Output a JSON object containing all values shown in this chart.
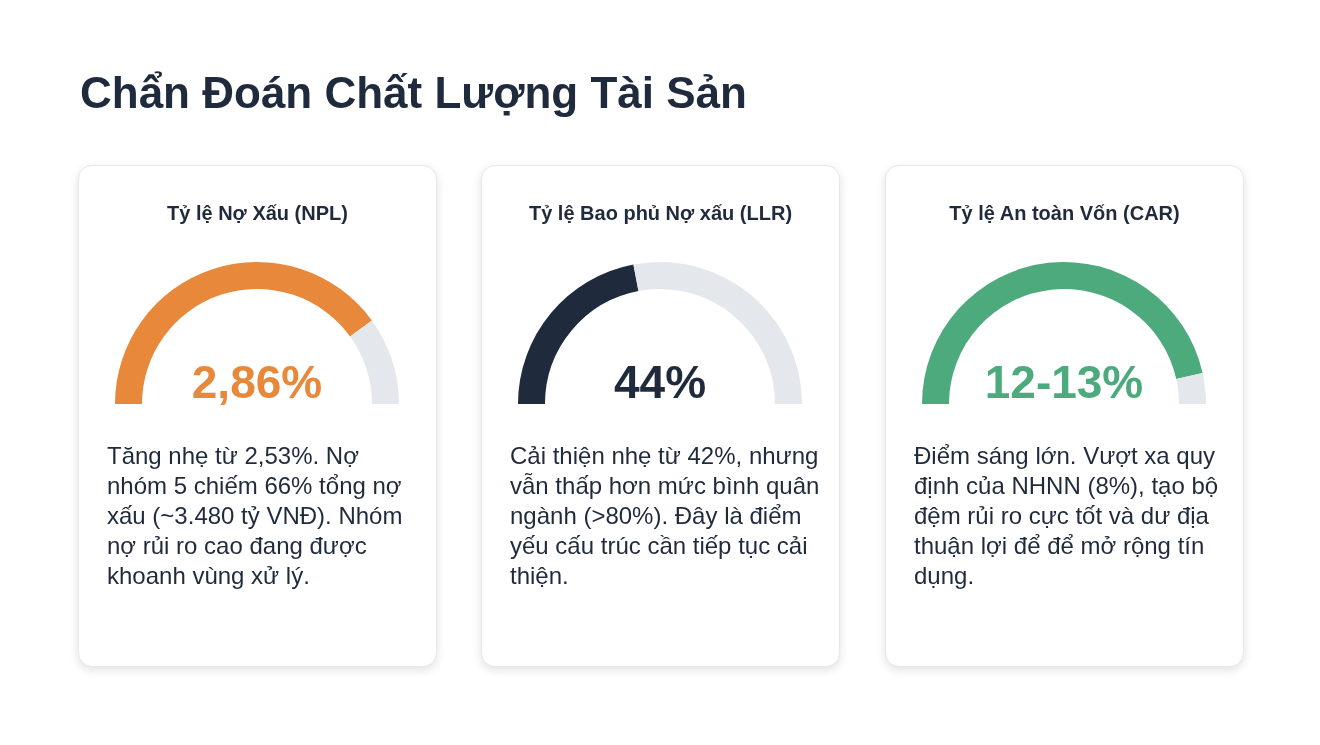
{
  "chart_data": [
    {
      "type": "other",
      "title": "Chẩn Đoán Chất Lượng Tài Sản"
    },
    {
      "type": "donut",
      "title": "Tỷ lệ Nợ Xấu (NPL)",
      "categories": [
        null,
        null
      ],
      "values": [
        80,
        20
      ],
      "colors": [
        "#e8883a",
        "#e4e7ec"
      ],
      "annotations": [
        "2,86%",
        "Tăng nhẹ từ 2,53%. Nợ nhóm 5 chiếm 66% tổng nợ xấu (~3.480 tỷ VNĐ). Nhóm nợ rủi ro cao đang được khoanh vùng xử lý."
      ]
    },
    {
      "type": "donut",
      "title": "Tỷ lệ Bao phủ Nợ xấu (LLR)",
      "categories": [
        null,
        null
      ],
      "values": [
        44,
        56
      ],
      "colors": [
        "#1f2a3c",
        "#e4e7ec"
      ],
      "annotations": [
        "44%",
        "Cải thiện nhẹ từ 42%, nhưng vẫn thấp hơn mức bình quân ngành (>80%). Đây là điểm yếu cấu trúc cần tiếp tục cải thiện."
      ]
    },
    {
      "type": "donut",
      "title": "Tỷ lệ An toàn Vốn (CAR)",
      "categories": [
        null,
        null
      ],
      "values": [
        93,
        7
      ],
      "colors": [
        "#4caa7c",
        "#e4e7ec"
      ],
      "annotations": [
        "12-13%",
        "Điểm sáng lớn. Vượt xa quy định của NHNN (8%), tạo bộ đệm rủi ro cực tốt và dư địa thuận lợi để để mở rộng tín dụng."
      ]
    }
  ]
}
